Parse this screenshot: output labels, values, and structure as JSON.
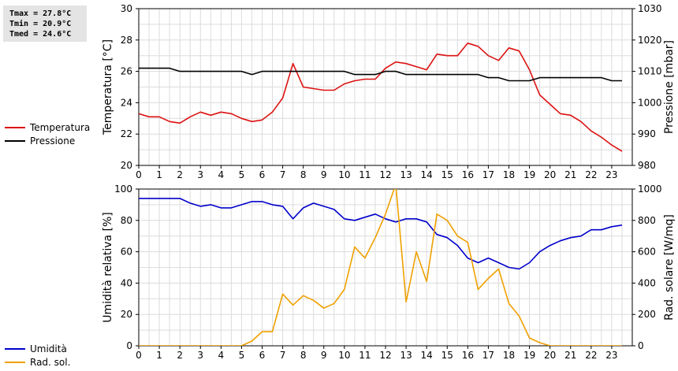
{
  "stats": {
    "tmax": "Tmax = 27.8°C",
    "tmin": "Tmin = 20.9°C",
    "tmed": "Tmed = 24.6°C"
  },
  "chart_data": [
    {
      "type": "line",
      "xlim": [
        0,
        24
      ],
      "x_ticks": [
        0,
        1,
        2,
        3,
        4,
        5,
        6,
        7,
        8,
        9,
        10,
        11,
        12,
        13,
        14,
        15,
        16,
        17,
        18,
        19,
        20,
        21,
        22,
        23
      ],
      "y_left": {
        "label": "Temperatura [°C]",
        "lim": [
          20,
          30
        ],
        "ticks": [
          20,
          22,
          24,
          26,
          28,
          30
        ]
      },
      "y_right": {
        "label": "Pressione [mbar]",
        "lim": [
          980,
          1030
        ],
        "ticks": [
          980,
          990,
          1000,
          1010,
          1020,
          1030
        ]
      },
      "grid": true,
      "legend_placement": "left",
      "series": [
        {
          "name": "Temperatura",
          "axis": "left",
          "color": "#dd1111",
          "x": [
            0,
            0.5,
            1,
            1.5,
            2,
            2.5,
            3,
            3.5,
            4,
            4.5,
            5,
            5.5,
            6,
            6.5,
            7,
            7.5,
            8,
            8.5,
            9,
            9.5,
            10,
            10.5,
            11,
            11.5,
            12,
            12.5,
            13,
            13.5,
            14,
            14.5,
            15,
            15.5,
            16,
            16.5,
            17,
            17.5,
            18,
            18.5,
            19,
            19.5,
            20,
            20.5,
            21,
            21.5,
            22,
            22.5,
            23,
            23.5
          ],
          "y": [
            23.3,
            23.1,
            23.1,
            22.8,
            22.7,
            23.1,
            23.4,
            23.2,
            23.4,
            23.3,
            23.0,
            22.8,
            22.9,
            23.4,
            24.3,
            26.5,
            25.0,
            24.9,
            24.8,
            24.8,
            25.2,
            25.4,
            25.5,
            25.5,
            26.2,
            26.6,
            26.5,
            26.3,
            26.1,
            27.1,
            27.0,
            27.0,
            27.8,
            27.6,
            27.0,
            26.7,
            27.5,
            27.3,
            26.1,
            24.5,
            23.9,
            23.3,
            23.2,
            22.8,
            22.2,
            21.8,
            21.3,
            20.9
          ]
        },
        {
          "name": "Pressione",
          "axis": "right",
          "color": "#000000",
          "x": [
            0,
            0.5,
            1,
            1.5,
            2,
            2.5,
            3,
            3.5,
            4,
            4.5,
            5,
            5.5,
            6,
            6.5,
            7,
            7.5,
            8,
            8.5,
            9,
            9.5,
            10,
            10.5,
            11,
            11.5,
            12,
            12.5,
            13,
            13.5,
            14,
            14.5,
            15,
            15.5,
            16,
            16.5,
            17,
            17.5,
            18,
            18.5,
            19,
            19.5,
            20,
            20.5,
            21,
            21.5,
            22,
            22.5,
            23,
            23.5
          ],
          "y": [
            1011,
            1011,
            1011,
            1011,
            1010,
            1010,
            1010,
            1010,
            1010,
            1010,
            1010,
            1009,
            1010,
            1010,
            1010,
            1010,
            1010,
            1010,
            1010,
            1010,
            1010,
            1009,
            1009,
            1009,
            1010,
            1010,
            1009,
            1009,
            1009,
            1009,
            1009,
            1009,
            1009,
            1009,
            1008,
            1008,
            1007,
            1007,
            1007,
            1008,
            1008,
            1008,
            1008,
            1008,
            1008,
            1008,
            1007,
            1007
          ]
        }
      ]
    },
    {
      "type": "line",
      "xlim": [
        0,
        24
      ],
      "x_ticks": [
        0,
        1,
        2,
        3,
        4,
        5,
        6,
        7,
        8,
        9,
        10,
        11,
        12,
        13,
        14,
        15,
        16,
        17,
        18,
        19,
        20,
        21,
        22,
        23
      ],
      "y_left": {
        "label": "Umidità relativa [%]",
        "lim": [
          0,
          100
        ],
        "ticks": [
          0,
          20,
          40,
          60,
          80,
          100
        ]
      },
      "y_right": {
        "label": "Rad. solare [W/mq]",
        "lim": [
          0,
          1000
        ],
        "ticks": [
          0,
          200,
          400,
          600,
          800,
          1000
        ]
      },
      "grid": true,
      "legend_placement": "left",
      "series": [
        {
          "name": "Umidità",
          "axis": "left",
          "color": "#0000cc",
          "x": [
            0,
            0.5,
            1,
            1.5,
            2,
            2.5,
            3,
            3.5,
            4,
            4.5,
            5,
            5.5,
            6,
            6.5,
            7,
            7.5,
            8,
            8.5,
            9,
            9.5,
            10,
            10.5,
            11,
            11.5,
            12,
            12.5,
            13,
            13.5,
            14,
            14.5,
            15,
            15.5,
            16,
            16.5,
            17,
            17.5,
            18,
            18.5,
            19,
            19.5,
            20,
            20.5,
            21,
            21.5,
            22,
            22.5,
            23,
            23.5
          ],
          "y": [
            94,
            94,
            94,
            94,
            94,
            91,
            89,
            90,
            88,
            88,
            90,
            92,
            92,
            90,
            89,
            81,
            88,
            91,
            89,
            87,
            81,
            80,
            82,
            84,
            81,
            79,
            81,
            81,
            79,
            71,
            69,
            64,
            56,
            53,
            56,
            53,
            50,
            49,
            53,
            60,
            64,
            67,
            69,
            70,
            74,
            74,
            76,
            77
          ]
        },
        {
          "name": "Rad. sol.",
          "axis": "right",
          "color": "#f0a000",
          "x": [
            0,
            0.5,
            1,
            1.5,
            2,
            2.5,
            3,
            3.5,
            4,
            4.5,
            5,
            5.5,
            6,
            6.5,
            7,
            7.5,
            8,
            8.5,
            9,
            9.5,
            10,
            10.5,
            11,
            11.5,
            12,
            12.5,
            13,
            13.5,
            14,
            14.5,
            15,
            15.5,
            16,
            16.5,
            17,
            17.5,
            18,
            18.5,
            19,
            19.5,
            20,
            20.5,
            21,
            21.5,
            22,
            22.5,
            23,
            23.5
          ],
          "y": [
            0,
            0,
            0,
            0,
            0,
            0,
            0,
            0,
            0,
            0,
            0,
            30,
            90,
            90,
            330,
            260,
            320,
            290,
            240,
            270,
            360,
            630,
            560,
            690,
            840,
            1030,
            280,
            600,
            410,
            840,
            800,
            700,
            660,
            360,
            430,
            490,
            270,
            190,
            50,
            20,
            0,
            0,
            0,
            0,
            0,
            0,
            0,
            0
          ]
        }
      ]
    }
  ]
}
